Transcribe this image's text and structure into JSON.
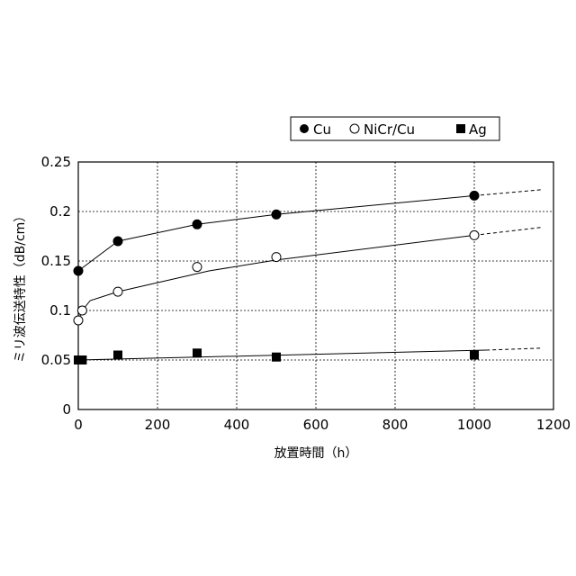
{
  "chart_data": {
    "type": "scatter",
    "xlabel": "放置時間（h）",
    "ylabel": "ミリ波伝送特性（dB/cm）",
    "xlim": [
      0,
      1200
    ],
    "ylim": [
      0,
      0.25
    ],
    "x_ticks": [
      0,
      200,
      400,
      600,
      800,
      1000,
      1200
    ],
    "y_ticks": [
      0,
      0.05,
      0.1,
      0.15,
      0.2,
      0.25
    ],
    "x_tick_labels": [
      "0",
      "200",
      "400",
      "600",
      "800",
      "1000",
      "1200"
    ],
    "y_tick_labels": [
      "0",
      "0.05",
      "0.1",
      "0.15",
      "0.2",
      "0.25"
    ],
    "grid": true,
    "legend_position": "top-right",
    "series": [
      {
        "name": "Cu",
        "marker": "filled-circle",
        "points": [
          [
            0,
            0.14
          ],
          [
            100,
            0.17
          ],
          [
            300,
            0.187
          ],
          [
            500,
            0.197
          ],
          [
            1000,
            0.216
          ]
        ],
        "fit": [
          [
            0,
            0.14
          ],
          [
            100,
            0.17
          ],
          [
            300,
            0.187
          ],
          [
            500,
            0.197
          ],
          [
            1000,
            0.216
          ]
        ],
        "extrapolation": [
          [
            1000,
            0.216
          ],
          [
            1170,
            0.222
          ]
        ]
      },
      {
        "name": "NiCr/Cu",
        "marker": "open-circle",
        "points": [
          [
            0,
            0.09
          ],
          [
            10,
            0.1
          ],
          [
            100,
            0.119
          ],
          [
            300,
            0.144
          ],
          [
            500,
            0.154
          ],
          [
            1000,
            0.176
          ]
        ],
        "fit": [
          [
            2,
            0.092
          ],
          [
            10,
            0.1
          ],
          [
            30,
            0.11
          ],
          [
            100,
            0.119
          ],
          [
            330,
            0.14
          ],
          [
            500,
            0.151
          ],
          [
            1000,
            0.176
          ]
        ],
        "extrapolation": [
          [
            1000,
            0.176
          ],
          [
            1170,
            0.184
          ]
        ]
      },
      {
        "name": "Ag",
        "marker": "filled-square",
        "points": [
          [
            0,
            0.05
          ],
          [
            10,
            0.05
          ],
          [
            100,
            0.055
          ],
          [
            300,
            0.057
          ],
          [
            500,
            0.053
          ],
          [
            1000,
            0.055
          ]
        ],
        "fit": [
          [
            0,
            0.05
          ],
          [
            1030,
            0.06
          ]
        ],
        "extrapolation": [
          [
            1030,
            0.06
          ],
          [
            1170,
            0.062
          ]
        ]
      }
    ],
    "legend": {
      "items": [
        "Cu",
        "NiCr/Cu",
        "Ag"
      ]
    }
  }
}
